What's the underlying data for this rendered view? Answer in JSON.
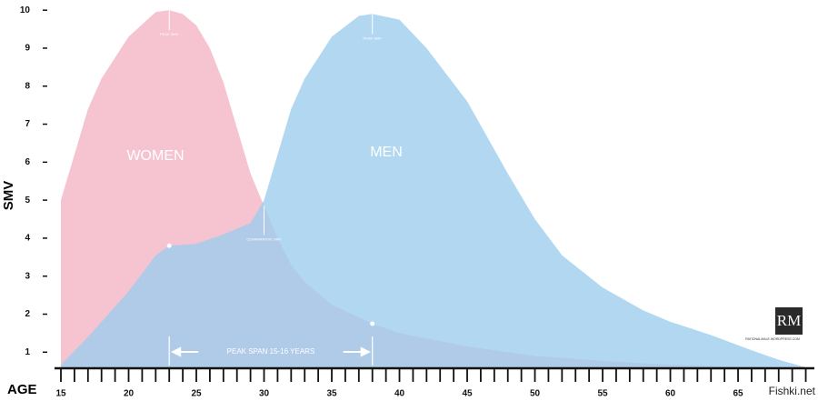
{
  "chart_data": {
    "type": "area",
    "x_label": "AGE",
    "y_label": "SMV",
    "xlim": [
      15,
      70.5
    ],
    "ylim": [
      0.6,
      10.1
    ],
    "xticks": [
      15,
      20,
      25,
      30,
      35,
      40,
      45,
      50,
      55,
      60,
      65
    ],
    "xminor_ticks": [
      15,
      16,
      17,
      18,
      19,
      20,
      21,
      22,
      23,
      24,
      25,
      26,
      27,
      28,
      29,
      30,
      31,
      32,
      33,
      34,
      35,
      36,
      37,
      38,
      39,
      40,
      41,
      42,
      43,
      44,
      45,
      46,
      47,
      48,
      49,
      50,
      51,
      52,
      53,
      54,
      55,
      56,
      57,
      58,
      59,
      60,
      61,
      62,
      63,
      64,
      65,
      66,
      67,
      68,
      69,
      70
    ],
    "yticks": [
      1,
      2,
      3,
      4,
      5,
      6,
      7,
      8,
      9,
      10
    ],
    "series": [
      {
        "name": "WOMEN",
        "color": "#f6c3d1",
        "x": [
          15,
          17,
          18,
          20,
          22,
          23,
          24,
          25,
          26,
          27,
          28,
          29,
          30,
          31,
          32,
          33,
          35,
          38,
          40,
          45,
          50,
          55,
          60,
          65,
          70
        ],
        "values": [
          5.0,
          7.4,
          8.2,
          9.3,
          9.95,
          10,
          9.9,
          9.6,
          9.0,
          8.1,
          6.9,
          5.7,
          4.85,
          4.0,
          3.3,
          2.85,
          2.25,
          1.75,
          1.5,
          1.15,
          0.9,
          0.77,
          0.67,
          0.62,
          0.6
        ]
      },
      {
        "name": "MEN",
        "color": "#9fcdee",
        "x": [
          15,
          17,
          20,
          22,
          23,
          25,
          27,
          29,
          30,
          31,
          32,
          33,
          35,
          37,
          38,
          40,
          42,
          45,
          48,
          50,
          52,
          55,
          58,
          60,
          63,
          66,
          68,
          70
        ],
        "values": [
          0.67,
          1.4,
          2.6,
          3.55,
          3.8,
          3.85,
          4.1,
          4.4,
          5.0,
          6.2,
          7.4,
          8.2,
          9.3,
          9.85,
          9.9,
          9.75,
          9.0,
          7.6,
          5.7,
          4.5,
          3.55,
          2.7,
          2.1,
          1.8,
          1.45,
          1.05,
          0.8,
          0.6
        ]
      }
    ],
    "annotations": [
      {
        "text": "PEAK SMV",
        "x": 23
      },
      {
        "text": "PEAK SMV",
        "x": 38
      },
      {
        "text": "COMPARATIVE SMV",
        "x": 30
      }
    ],
    "peak_span": {
      "label": "PEAK SPAN 15-16 YEARS",
      "x": [
        23,
        38
      ]
    }
  },
  "logo": {
    "initials": "RM",
    "site": "RATIONALMALE.WORDPRESS.COM"
  },
  "watermark": "Fishki.net"
}
